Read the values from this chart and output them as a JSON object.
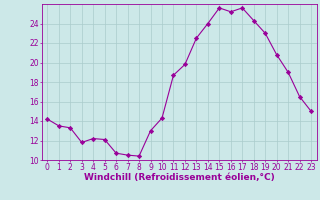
{
  "x": [
    0,
    1,
    2,
    3,
    4,
    5,
    6,
    7,
    8,
    9,
    10,
    11,
    12,
    13,
    14,
    15,
    16,
    17,
    18,
    19,
    20,
    21,
    22,
    23
  ],
  "y": [
    14.2,
    13.5,
    13.3,
    11.8,
    12.2,
    12.1,
    10.7,
    10.5,
    10.4,
    13.0,
    14.3,
    18.7,
    19.8,
    22.5,
    24.0,
    25.6,
    25.2,
    25.6,
    24.3,
    23.0,
    20.8,
    19.0,
    16.5,
    15.0
  ],
  "line_color": "#990099",
  "marker": "D",
  "marker_size": 2.2,
  "bg_color": "#cce8e8",
  "grid_color": "#aacccc",
  "axis_color": "#990099",
  "tick_color": "#990099",
  "xlabel": "Windchill (Refroidissement éolien,°C)",
  "xlim": [
    -0.5,
    23.5
  ],
  "ylim": [
    10,
    26
  ],
  "yticks": [
    10,
    12,
    14,
    16,
    18,
    20,
    22,
    24
  ],
  "xticks": [
    0,
    1,
    2,
    3,
    4,
    5,
    6,
    7,
    8,
    9,
    10,
    11,
    12,
    13,
    14,
    15,
    16,
    17,
    18,
    19,
    20,
    21,
    22,
    23
  ],
  "xlabel_fontsize": 6.5,
  "tick_fontsize": 5.5,
  "label_color": "#990099"
}
